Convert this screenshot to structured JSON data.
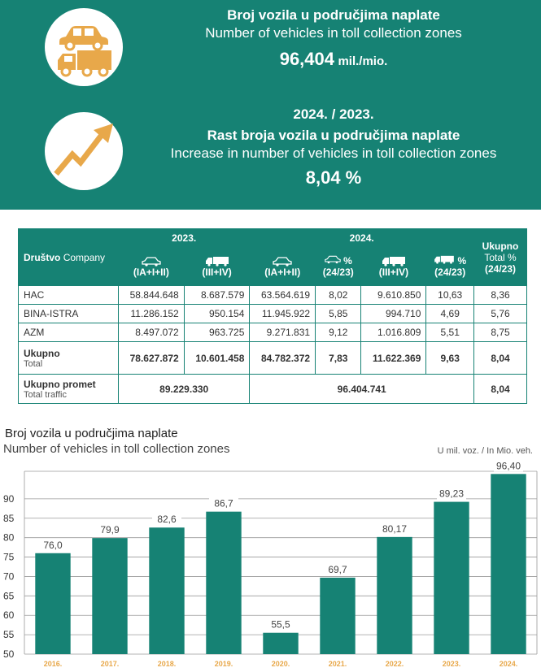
{
  "banner": {
    "title1_hr": "Broj vozila u područjima naplate",
    "title1_en": "Number of vehicles in toll collection zones",
    "value1": "96,404",
    "value1_unit": "mil./mio.",
    "title2_years": "2024. / 2023.",
    "title2_hr": "Rast broja vozila u područjima naplate",
    "title2_en": "Increase in number of vehicles in toll collection zones",
    "value2": "8,04 %",
    "icon_color": "#E8A84A",
    "bg_color": "#168274"
  },
  "table": {
    "company_hr": "Društvo",
    "company_en": "Company",
    "year_2023": "2023.",
    "year_2024": "2024.",
    "total_hr": "Ukupno",
    "total_pct_en": "Total %",
    "total_pct_period": "(24/23)",
    "cat_cars": "(IA+I+II)",
    "cat_trucks": "(III+IV)",
    "pct_sign": "%",
    "pct_period": "(24/23)",
    "rows": [
      {
        "name": "HAC",
        "c23": "58.844.648",
        "t23": "8.687.579",
        "c24": "63.564.619",
        "cp": "8,02",
        "t24": "9.610.850",
        "tp": "10,63",
        "tot": "8,36"
      },
      {
        "name": "BINA-ISTRA",
        "c23": "11.286.152",
        "t23": "950.154",
        "c24": "11.945.922",
        "cp": "5,85",
        "t24": "994.710",
        "tp": "4,69",
        "tot": "5,76"
      },
      {
        "name": "AZM",
        "c23": "8.497.072",
        "t23": "963.725",
        "c24": "9.271.831",
        "cp": "9,12",
        "t24": "1.016.809",
        "tp": "5,51",
        "tot": "8,75"
      }
    ],
    "total_row": {
      "name_hr": "Ukupno",
      "name_en": "Total",
      "c23": "78.627.872",
      "t23": "10.601.458",
      "c24": "84.782.372",
      "cp": "7,83",
      "t24": "11.622.369",
      "tp": "9,63",
      "tot": "8,04"
    },
    "traffic_row": {
      "name_hr": "Ukupno promet",
      "name_en": "Total traffic",
      "v23": "89.229.330",
      "v24": "96.404.741",
      "tot": "8,04"
    }
  },
  "chart_header": {
    "title_hr": "Broj vozila u područjima naplate",
    "title_en": "Number of vehicles in toll collection zones",
    "unit": "U mil. voz. / In Mio. veh."
  },
  "chart_data": {
    "type": "bar",
    "title": "Broj vozila u područjima naplate / Number of vehicles in toll collection zones",
    "categories": [
      "2016.",
      "2017.",
      "2018.",
      "2019.",
      "2020.",
      "2021.",
      "2022.",
      "2023.",
      "2024."
    ],
    "values": [
      76.0,
      79.9,
      82.6,
      86.7,
      55.5,
      69.7,
      80.17,
      89.23,
      96.4
    ],
    "labels": [
      "76,0",
      "79,9",
      "82,6",
      "86,7",
      "55,5",
      "69,7",
      "80,17",
      "89,23",
      "96,40"
    ],
    "ylabel": "U mil. voz. / In Mio. veh.",
    "yticks": [
      50,
      55,
      60,
      65,
      70,
      75,
      80,
      85,
      90
    ],
    "ylim": [
      50,
      95
    ],
    "grid": true,
    "bar_color": "#168274",
    "tick_label_color": "#E8A84A"
  }
}
